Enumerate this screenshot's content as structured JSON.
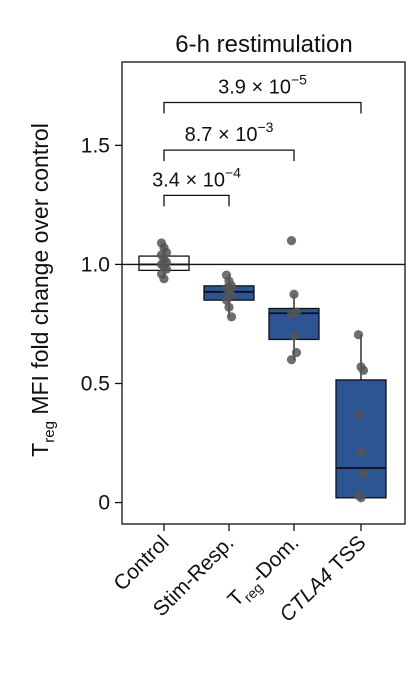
{
  "chart_data": {
    "type": "box",
    "title": "6-h restimulation",
    "ylabel": {
      "main": "T",
      "sub": "reg",
      "rest": " MFI fold change over control"
    },
    "ylim": [
      -0.09,
      1.85
    ],
    "yticks": [
      {
        "value": 0,
        "label": "0"
      },
      {
        "value": 0.5,
        "label": "0.5"
      },
      {
        "value": 1.0,
        "label": "1.0"
      },
      {
        "value": 1.5,
        "label": "1.5"
      }
    ],
    "reference_line": 1.0,
    "grid": false,
    "categories": [
      {
        "label": "Control",
        "pre": "",
        "sub": "",
        "post": "",
        "italic": false
      },
      {
        "label": "Stim-Resp.",
        "pre": "",
        "sub": "",
        "post": "",
        "italic": false
      },
      {
        "label": "T",
        "pre": "T",
        "sub": "reg",
        "post": "-Dom.",
        "italic": false
      },
      {
        "label": "CTLA4 TSS",
        "pre": "",
        "sub": "",
        "post": "",
        "italic": true,
        "italic_part": "CTLA4",
        "rest": " TSS"
      }
    ],
    "boxes": [
      {
        "q1": 0.975,
        "median": 1.0,
        "q3": 1.035,
        "whisker_low": 0.94,
        "whisker_high": 1.09,
        "color": "#ffffff"
      },
      {
        "q1": 0.85,
        "median": 0.885,
        "q3": 0.91,
        "whisker_low": 0.78,
        "whisker_high": 0.955,
        "color": "#2d5493"
      },
      {
        "q1": 0.685,
        "median": 0.795,
        "q3": 0.815,
        "whisker_low": 0.6,
        "whisker_high": 0.875,
        "color": "#2d5493"
      },
      {
        "q1": 0.02,
        "median": 0.145,
        "q3": 0.515,
        "whisker_low": 0.01,
        "whisker_high": 0.705,
        "color": "#2d5493"
      }
    ],
    "points": [
      [
        1.09,
        1.07,
        1.05,
        1.04,
        1.02,
        1.01,
        1.0,
        0.99,
        0.98,
        0.96,
        0.94
      ],
      [
        0.955,
        0.93,
        0.91,
        0.9,
        0.89,
        0.87,
        0.85,
        0.82,
        0.78
      ],
      [
        1.1,
        0.875,
        0.8,
        0.79,
        0.7,
        0.63,
        0.6
      ],
      [
        0.705,
        0.57,
        0.555,
        0.37,
        0.21,
        0.12,
        0.03,
        0.02
      ]
    ],
    "comparisons": [
      {
        "from": 0,
        "to": 1,
        "mantissa": "3.4 × 10",
        "exponent": "−4",
        "level": 1.29
      },
      {
        "from": 0,
        "to": 2,
        "mantissa": "8.7 × 10",
        "exponent": "−3",
        "level": 1.48
      },
      {
        "from": 0,
        "to": 3,
        "mantissa": "3.9 × 10",
        "exponent": "−5",
        "level": 1.68
      }
    ],
    "colors": {
      "box_fill": "#2d5493",
      "point": "#555555",
      "axis": "#111111"
    }
  }
}
